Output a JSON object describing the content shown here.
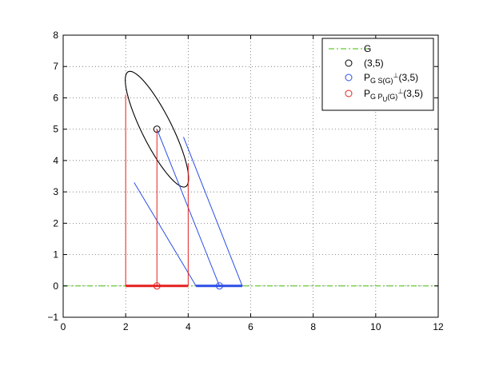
{
  "chart_data": {
    "type": "line",
    "title": "",
    "xlabel": "",
    "ylabel": "",
    "xlim": [
      0,
      12
    ],
    "ylim": [
      -1,
      8
    ],
    "x_ticks": [
      0,
      2,
      4,
      6,
      8,
      10,
      12
    ],
    "y_ticks": [
      -1,
      0,
      1,
      2,
      3,
      4,
      5,
      6,
      7,
      8
    ],
    "grid": "dotted",
    "legend_position": "top-right",
    "legend": [
      {
        "key": "G",
        "label": "G",
        "marker": "dash-dot-line",
        "color": "#66cc33"
      },
      {
        "key": "pt",
        "label": "(3,5)",
        "marker": "circle",
        "color": "#000000"
      },
      {
        "key": "ps",
        "label": "P",
        "sub": "G S(G)",
        "sup": "⊥",
        "tail": "(3,5)",
        "marker": "circle",
        "color": "#2b4ee6"
      },
      {
        "key": "pu",
        "label": "P",
        "sub": "G P",
        "subsub": "U",
        "sub2": "(G)",
        "sup": "⊥",
        "tail": "(3,5)",
        "marker": "circle",
        "color": "#e62020"
      }
    ],
    "series": [
      {
        "name": "G",
        "kind": "hline",
        "y": 0,
        "x": [
          0,
          12
        ],
        "color": "#66cc33"
      },
      {
        "name": "(3,5)",
        "kind": "point",
        "x": [
          3
        ],
        "y": [
          5
        ],
        "color": "#000000"
      },
      {
        "name": "ellipse",
        "kind": "ellipse",
        "center": [
          3,
          5
        ],
        "semi_axes": [
          2.05,
          0.48
        ],
        "angle_deg": -63.4,
        "color": "#000000"
      },
      {
        "name": "P_G S(G)⊥(3,5)",
        "kind": "segments",
        "color": "#2b4ee6",
        "lines": [
          [
            [
              3,
              5
            ],
            [
              5,
              0
            ]
          ],
          [
            [
              2.27,
              3.3
            ],
            [
              4.25,
              0
            ]
          ],
          [
            [
              3.85,
              4.75
            ],
            [
              5.73,
              0
            ]
          ]
        ],
        "thick": [
          [
            4.25,
            0
          ],
          [
            5.73,
            0
          ]
        ],
        "point": [
          5,
          0
        ]
      },
      {
        "name": "P_G P_U(G)⊥(3,5)",
        "kind": "segments",
        "color": "#e62020",
        "lines": [
          [
            [
              3,
              5
            ],
            [
              3,
              0
            ]
          ],
          [
            [
              2,
              6.1
            ],
            [
              2,
              0
            ]
          ],
          [
            [
              4,
              3.9
            ],
            [
              4,
              0
            ]
          ]
        ],
        "thick": [
          [
            2,
            0
          ],
          [
            4,
            0
          ]
        ],
        "point": [
          3,
          0
        ]
      }
    ]
  }
}
